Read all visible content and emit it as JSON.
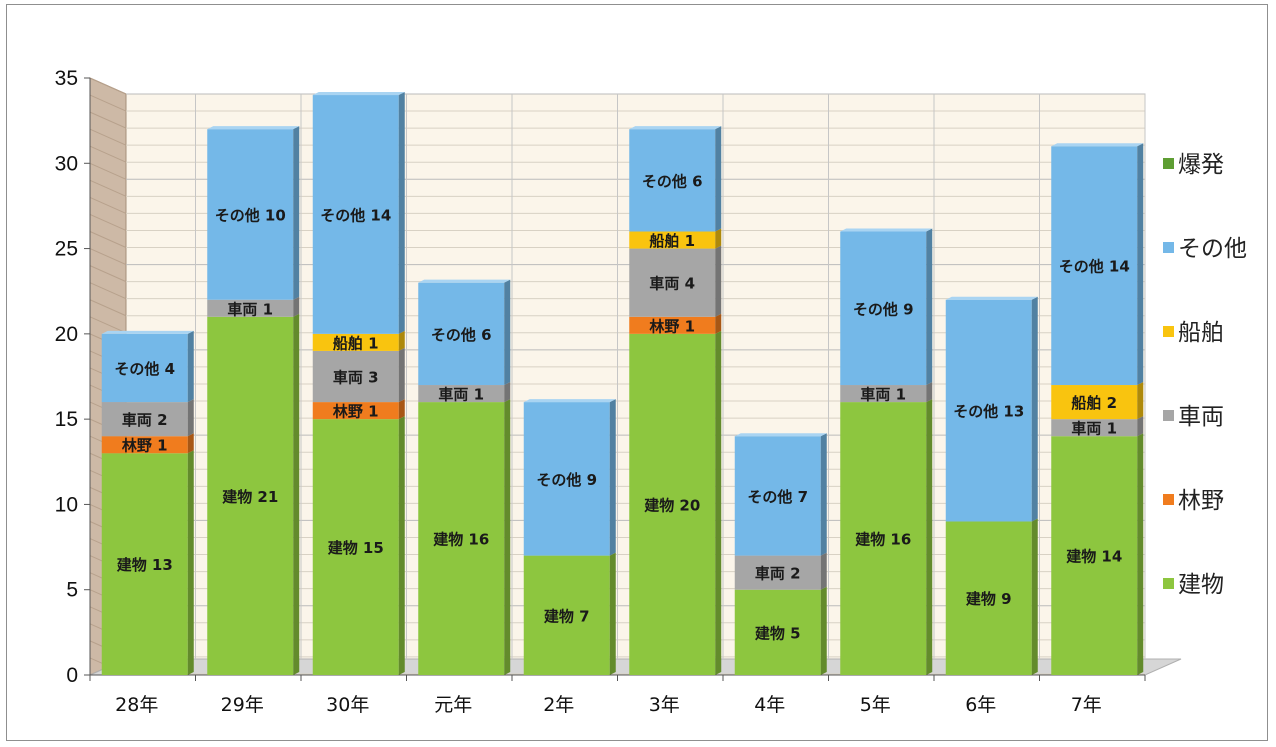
{
  "chart_data": {
    "type": "bar",
    "stacked": true,
    "title": "",
    "xlabel": "",
    "ylabel": "",
    "ylim": [
      0,
      35
    ],
    "yticks": [
      0,
      5,
      10,
      15,
      20,
      25,
      30,
      35
    ],
    "grid": true,
    "legend_position": "right",
    "categories": [
      "28年",
      "29年",
      "30年",
      "元年",
      "2年",
      "3年",
      "4年",
      "5年",
      "6年",
      "7年"
    ],
    "series": [
      {
        "name": "建物",
        "color": "#8dc63f",
        "values": [
          13,
          21,
          15,
          16,
          7,
          20,
          5,
          16,
          9,
          14
        ]
      },
      {
        "name": "林野",
        "color": "#f07c1e",
        "values": [
          1,
          0,
          1,
          0,
          0,
          1,
          0,
          0,
          0,
          0
        ]
      },
      {
        "name": "車両",
        "color": "#a6a6a6",
        "values": [
          2,
          1,
          3,
          1,
          0,
          4,
          2,
          1,
          0,
          1
        ]
      },
      {
        "name": "船舶",
        "color": "#f9c40f",
        "values": [
          0,
          0,
          1,
          0,
          0,
          1,
          0,
          0,
          0,
          2
        ]
      },
      {
        "name": "その他",
        "color": "#74b8e8",
        "values": [
          4,
          10,
          14,
          6,
          9,
          6,
          7,
          9,
          13,
          14
        ]
      },
      {
        "name": "爆発",
        "color": "#5e9e33",
        "values": [
          0,
          0,
          0,
          0,
          0,
          0,
          0,
          0,
          0,
          0
        ]
      }
    ],
    "legend_order": [
      "爆発",
      "その他",
      "船舶",
      "車両",
      "林野",
      "建物"
    ]
  }
}
